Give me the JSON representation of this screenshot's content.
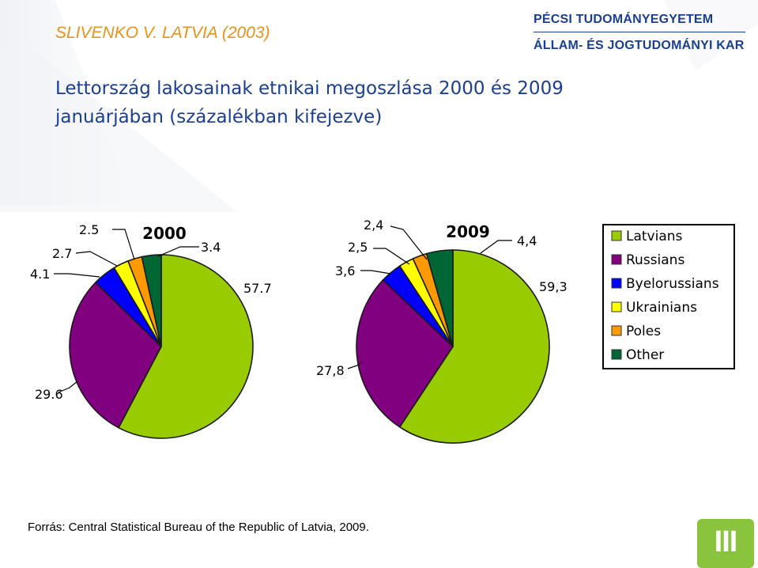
{
  "header": {
    "left_title": "SLIVENKO V. LATVIA (2003)",
    "university_line1": "PÉCSI TUDOMÁNYEGYETEM",
    "university_line2": "ÁLLAM- ÉS JOGTUDOMÁNYI KAR"
  },
  "title": {
    "line1": "Lettország lakosainak etnikai megoszlása 2000 és 2009",
    "line2": "januárjában (százalékban kifejezve)"
  },
  "source": "Forrás: Central Statistical Bureau of the Republic of Latvia, 2009.",
  "logo": {
    "text": "III",
    "color": "#8ac43f"
  },
  "colors": {
    "Latvians": "#99cc00",
    "Russians": "#800080",
    "Byelorussians": "#0000ff",
    "Ukrainians": "#ffff00",
    "Poles": "#ff9900",
    "Other": "#006633"
  },
  "chart_data": [
    {
      "type": "pie",
      "title": "2000",
      "categories": [
        "Latvians",
        "Russians",
        "Byelorussians",
        "Ukrainians",
        "Poles",
        "Other"
      ],
      "values": [
        57.7,
        29.6,
        4.1,
        2.7,
        2.5,
        3.4
      ],
      "value_labels": [
        "57.7",
        "29.6",
        "4.1",
        "2.7",
        "2.5",
        "3.4"
      ]
    },
    {
      "type": "pie",
      "title": "2009",
      "categories": [
        "Latvians",
        "Russians",
        "Byelorussians",
        "Ukrainians",
        "Poles",
        "Other"
      ],
      "values": [
        59.3,
        27.8,
        3.6,
        2.5,
        2.4,
        4.4
      ],
      "value_labels": [
        "59,3",
        "27,8",
        "3,6",
        "2,5",
        "2,4",
        "4,4"
      ]
    }
  ],
  "legend": {
    "placement": "right",
    "items": [
      "Latvians",
      "Russians",
      "Byelorussians",
      "Ukrainians",
      "Poles",
      "Other"
    ]
  }
}
